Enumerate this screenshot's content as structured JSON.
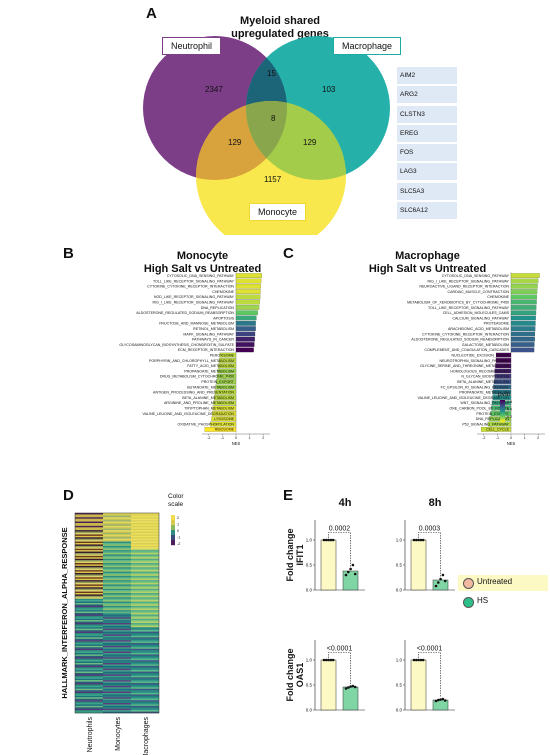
{
  "panelA": {
    "letter": "A",
    "title_line1": "Myeloid shared",
    "title_line2": "upregulated genes",
    "sets": {
      "neutrophil": "Neutrophil",
      "macrophage": "Macrophage",
      "monocyte": "Monocyte"
    },
    "counts": {
      "n_only": "2347",
      "m_only": "103",
      "mo_only": "1157",
      "n_m": "15",
      "n_mo": "129",
      "m_mo": "129",
      "all": "8"
    },
    "genes": [
      "AIM2",
      "ARG2",
      "CLSTN3",
      "EREG",
      "FOS",
      "LAG3",
      "SLC5A3",
      "SLC6A12"
    ]
  },
  "panelB": {
    "letter": "B",
    "title_line1": "Monocyte",
    "title_line2": "High Salt vs Untreated"
  },
  "panelC": {
    "letter": "C",
    "title_line1": "Macrophage",
    "title_line2": "High Salt vs Untreated",
    "legend_title": "pval"
  },
  "panelD": {
    "letter": "D",
    "ylabel": "HALLMARK_INTERFERON_ALPHA_RESPONSE",
    "legend_title_line1": "Color",
    "legend_title_line2": "scale",
    "legend_ticks": [
      "2",
      "1",
      "0",
      "-1",
      "-2"
    ],
    "columns": [
      "Neutrophils",
      "Monocytes",
      "Macrophages"
    ]
  },
  "panelE": {
    "letter": "E",
    "legend": {
      "untreated": "Untreated",
      "hs": "HS"
    },
    "colors": {
      "untreated": "#fdf9c4",
      "hs": "#7fd6a4",
      "untreated_dot": "#f2b9a1",
      "hs_dot": "#2ec08a"
    }
  },
  "chart_data": [
    {
      "type": "bar",
      "id": "B",
      "title": "Monocyte High Salt vs Untreated",
      "xlabel": "NES",
      "xlim": [
        -2.5,
        2.5
      ],
      "xticks": [
        "-2",
        "-1",
        "0",
        "1",
        "2"
      ],
      "categories": [
        "CYTOSOLIC_DNA_SENSING_PATHWAY",
        "TOLL_LIKE_RECEPTOR_SIGNALING_PATHWAY",
        "CYTOKINE_CYTOKINE_RECEPTOR_INTERACTION",
        "CHEMOKINE",
        "NOD_LIKE_RECEPTOR_SIGNALING_PATHWAY",
        "RIG_I_LIKE_RECEPTOR_SIGNALING_PATHWAY",
        "DNA_REPLICATION",
        "ALDOSTERONE_REGULATED_SODIUM_REABSORPTION",
        "APOPTOSIS",
        "FRUCTOSE_AND_MANNOSE_METABOLISM",
        "RETINOL_METABOLISM",
        "MAPK_SIGNALING_PATHWAY",
        "PATHWAYS_IN_CANCER",
        "GLYCOSAMINOGLYCAN_BIOSYNTHESIS_CHONDROITIN_SULFATE",
        "ECM_RECEPTOR_INTERACTION",
        "PEROXISOME",
        "PORPHYRIN_AND_CHLOROPHYLL_METABOLISM",
        "FATTY_ACID_METABOLISM",
        "PROPANOATE_METABOLISM",
        "DRUG_METABOLISM_CYTOCHROME_P450",
        "PROTEIN_EXPORT",
        "BUTANOATE_METABOLISM",
        "ANTIGEN_PROCESSING_AND_PRESENTATION",
        "BETA_ALANINE_METABOLISM",
        "ARGININE_AND_PROLINE_METABOLISM",
        "TRYPTOPHAN_METABOLISM",
        "VALINE_LEUCINE_AND_ISOLEUCINE_DEGRADATION",
        "LYSOSOME",
        "OXIDATIVE_PHOSPHORYLATION",
        "RIBOSOME"
      ],
      "values": [
        1.9,
        1.85,
        1.82,
        1.8,
        1.78,
        1.75,
        1.7,
        1.6,
        1.5,
        1.45,
        1.45,
        1.4,
        1.38,
        1.35,
        1.3,
        -1.2,
        -1.25,
        -1.3,
        -1.35,
        -1.4,
        -1.45,
        -1.5,
        -1.55,
        -1.6,
        -1.65,
        -1.7,
        -1.75,
        -1.8,
        -1.9,
        -2.3
      ],
      "pval": [
        0.01,
        0.01,
        0.01,
        0.01,
        0.02,
        0.02,
        0.03,
        0.05,
        0.08,
        0.12,
        0.14,
        0.16,
        0.18,
        0.19,
        0.2,
        0.02,
        0.02,
        0.02,
        0.03,
        0.03,
        0.03,
        0.03,
        0.02,
        0.02,
        0.02,
        0.01,
        0.01,
        0.01,
        0.01,
        0.0
      ]
    },
    {
      "type": "bar",
      "id": "C",
      "title": "Macrophage High Salt vs Untreated",
      "xlabel": "NES",
      "xlim": [
        -2.5,
        2.5
      ],
      "xticks": [
        "-2",
        "-1",
        "0",
        "1",
        "2"
      ],
      "legend_ticks": [
        "0.6",
        "0.4",
        "0.2"
      ],
      "categories": [
        "CYTOSOLIC_DNA_SENSING_PATHWAY",
        "RIG_I_LIKE_RECEPTOR_SIGNALING_PATHWAY",
        "NEUROACTIVE_LIGAND_RECEPTOR_INTERACTION",
        "CARDIAC_MUSCLE_CONTRACTION",
        "CHEMOKINE",
        "METABOLISM_OF_XENOBIOTICS_BY_CYTOCHROME_P450",
        "TOLL_LIKE_RECEPTOR_SIGNALING_PATHWAY",
        "CELL_ADHESION_MOLECULES_CAMS",
        "CALCIUM_SIGNALING_PATHWAY",
        "PROTEASOME",
        "ARACHIDONIC_ACID_METABOLISM",
        "CYTOKINE_CYTOKINE_RECEPTOR_INTERACTION",
        "ALDOSTERONE_REGULATED_SODIUM_REABSORPTION",
        "GALACTOSE_METABOLISM",
        "COMPLEMENT_AND_COAGULATION_CASCADES",
        "NUCLEOTIDE_EXCISION_REPAIR",
        "NEUROTROPHIN_SIGNALING_PATHWAY",
        "GLYCINE_SERINE_AND_THREONINE_METABOLISM",
        "HOMOLOGOUS_RECOMBINATION",
        "N_GLYCAN_BIOSYNTHESIS",
        "BETA_ALANINE_METABOLISM",
        "FC_EPSILON_RI_SIGNALING_PATHWAY",
        "PROPANOATE_METABOLISM",
        "VALINE_LEUCINE_AND_ISOLEUCINE_DEGRADATION",
        "WNT_SIGNALING_PATHWAY",
        "ONE_CARBON_POOL_BY_FOLATE",
        "PROTEIN_EXPORT",
        "DNA_REPLICATION",
        "P53_SIGNALING_PATHWAY",
        "CELL_CYCLE"
      ],
      "values": [
        2.1,
        2.0,
        1.95,
        1.92,
        1.9,
        1.88,
        1.86,
        1.84,
        1.82,
        1.8,
        1.78,
        1.76,
        1.75,
        1.72,
        1.7,
        -1.1,
        -1.1,
        -1.15,
        -1.2,
        -1.2,
        -1.25,
        -1.3,
        -1.35,
        -1.35,
        -1.4,
        -1.45,
        -1.5,
        -1.6,
        -1.7,
        -2.2
      ],
      "pval": [
        0.05,
        0.08,
        0.1,
        0.12,
        0.15,
        0.2,
        0.22,
        0.25,
        0.3,
        0.32,
        0.35,
        0.38,
        0.4,
        0.42,
        0.45,
        0.6,
        0.6,
        0.58,
        0.55,
        0.5,
        0.45,
        0.4,
        0.35,
        0.3,
        0.25,
        0.2,
        0.15,
        0.1,
        0.08,
        0.05
      ]
    },
    {
      "type": "heatmap",
      "id": "D",
      "columns": [
        "Neutrophils",
        "Monocytes",
        "Macrophages"
      ],
      "legend_ticks": [
        "2",
        "1",
        "0",
        "-1",
        "-2"
      ]
    },
    {
      "type": "bar",
      "id": "E-4h-IFIT1",
      "title": "4h",
      "ylabel": "Fold change IFIT1",
      "categories": [
        "Untreated",
        "HS"
      ],
      "values": [
        1.0,
        0.38
      ],
      "points": [
        [
          1,
          1,
          1,
          1,
          1
        ],
        [
          0.3,
          0.36,
          0.42,
          0.5,
          0.32
        ]
      ],
      "ylim": [
        0,
        1.4
      ],
      "yticks": [
        "0.0",
        "0.5",
        "1.0"
      ],
      "annotation": "0.0002"
    },
    {
      "type": "bar",
      "id": "E-8h-IFIT1",
      "title": "8h",
      "categories": [
        "Untreated",
        "HS"
      ],
      "values": [
        1.0,
        0.2
      ],
      "points": [
        [
          1,
          1,
          1,
          1,
          1
        ],
        [
          0.08,
          0.15,
          0.22,
          0.3,
          0.18
        ]
      ],
      "ylim": [
        0,
        1.4
      ],
      "yticks": [
        "0.0",
        "0.5",
        "1.0"
      ],
      "annotation": "0.0003"
    },
    {
      "type": "bar",
      "id": "E-4h-OAS1",
      "ylabel": "Fold change OAS1",
      "categories": [
        "Untreated",
        "HS"
      ],
      "values": [
        1.0,
        0.46
      ],
      "points": [
        [
          1,
          1,
          1,
          1,
          1
        ],
        [
          0.43,
          0.45,
          0.47,
          0.48,
          0.46
        ]
      ],
      "ylim": [
        0,
        1.4
      ],
      "yticks": [
        "0.0",
        "0.5",
        "1.0"
      ],
      "annotation": "<0.0001"
    },
    {
      "type": "bar",
      "id": "E-8h-OAS1",
      "categories": [
        "Untreated",
        "HS"
      ],
      "values": [
        1.0,
        0.2
      ],
      "points": [
        [
          1,
          1,
          1,
          1,
          1
        ],
        [
          0.18,
          0.2,
          0.21,
          0.22,
          0.19
        ]
      ],
      "ylim": [
        0,
        1.4
      ],
      "yticks": [
        "0.0",
        "0.5",
        "1.0"
      ],
      "annotation": "<0.0001"
    }
  ]
}
